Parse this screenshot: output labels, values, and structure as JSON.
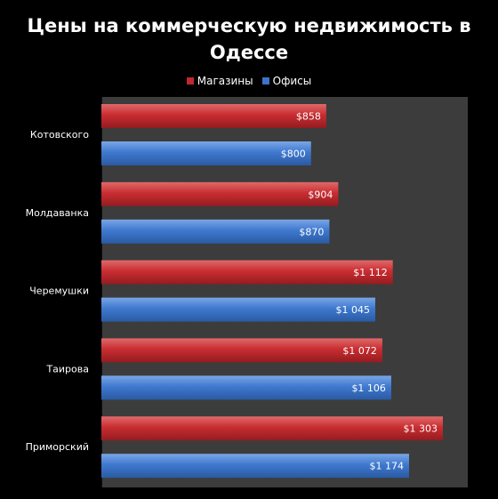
{
  "chart_data": {
    "type": "bar",
    "orientation": "horizontal",
    "title": "Цены на коммерческую недвижимость в Одессе",
    "categories": [
      "Котовского",
      "Молдаванка",
      "Черемушки",
      "Таирова",
      "Приморский"
    ],
    "series": [
      {
        "name": "Магазины",
        "color": "#c0282d",
        "values": [
          858,
          904,
          1112,
          1072,
          1303
        ],
        "labels": [
          "$858",
          "$904",
          "$1 112",
          "$1 072",
          "$1 303"
        ]
      },
      {
        "name": "Офисы",
        "color": "#3b74c8",
        "values": [
          800,
          870,
          1045,
          1106,
          1174
        ],
        "labels": [
          "$800",
          "$870",
          "$1 045",
          "$1 106",
          "$1 174"
        ]
      }
    ],
    "xlim": [
      0,
      1400
    ],
    "legend_position": "top",
    "plot_background": "#3c3c3c",
    "page_background": "#000000",
    "grid": false
  }
}
